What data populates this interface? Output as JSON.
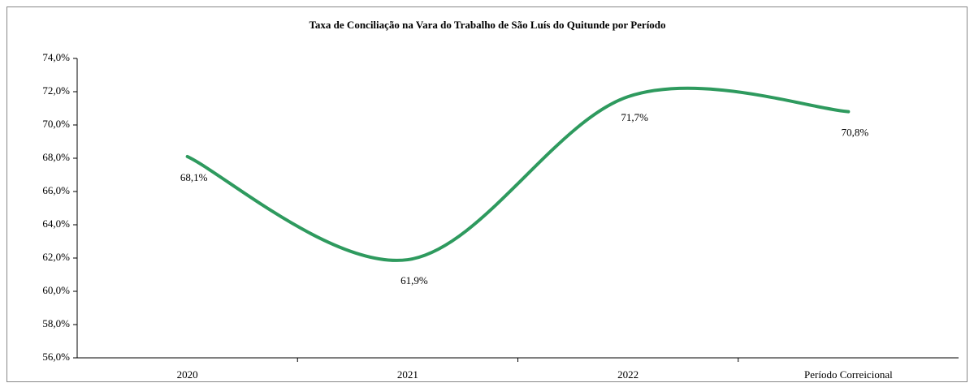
{
  "chart_data": {
    "type": "line",
    "title": "Taxa de Conciliação na Vara do Trabalho de São Luís do Quitunde por Período",
    "categories": [
      "2020",
      "2021",
      "2022",
      "Período Correicional"
    ],
    "series": [
      {
        "name": "Taxa de Conciliação",
        "color": "#2e9a5e",
        "values": [
          68.1,
          61.9,
          71.7,
          70.8
        ],
        "value_labels": [
          "68,1%",
          "61,9%",
          "71,7%",
          "70,8%"
        ]
      }
    ],
    "smooth": true,
    "grid": false,
    "ylim": [
      56,
      74
    ],
    "yticks": [
      {
        "value": 56,
        "label": "56,0%"
      },
      {
        "value": 58,
        "label": "58,0%"
      },
      {
        "value": 60,
        "label": "60,0%"
      },
      {
        "value": 62,
        "label": "62,0%"
      },
      {
        "value": 64,
        "label": "64,0%"
      },
      {
        "value": 66,
        "label": "66,0%"
      },
      {
        "value": 68,
        "label": "68,0%"
      },
      {
        "value": 70,
        "label": "70,0%"
      },
      {
        "value": 72,
        "label": "72,0%"
      },
      {
        "value": 74,
        "label": "74,0%"
      }
    ]
  }
}
